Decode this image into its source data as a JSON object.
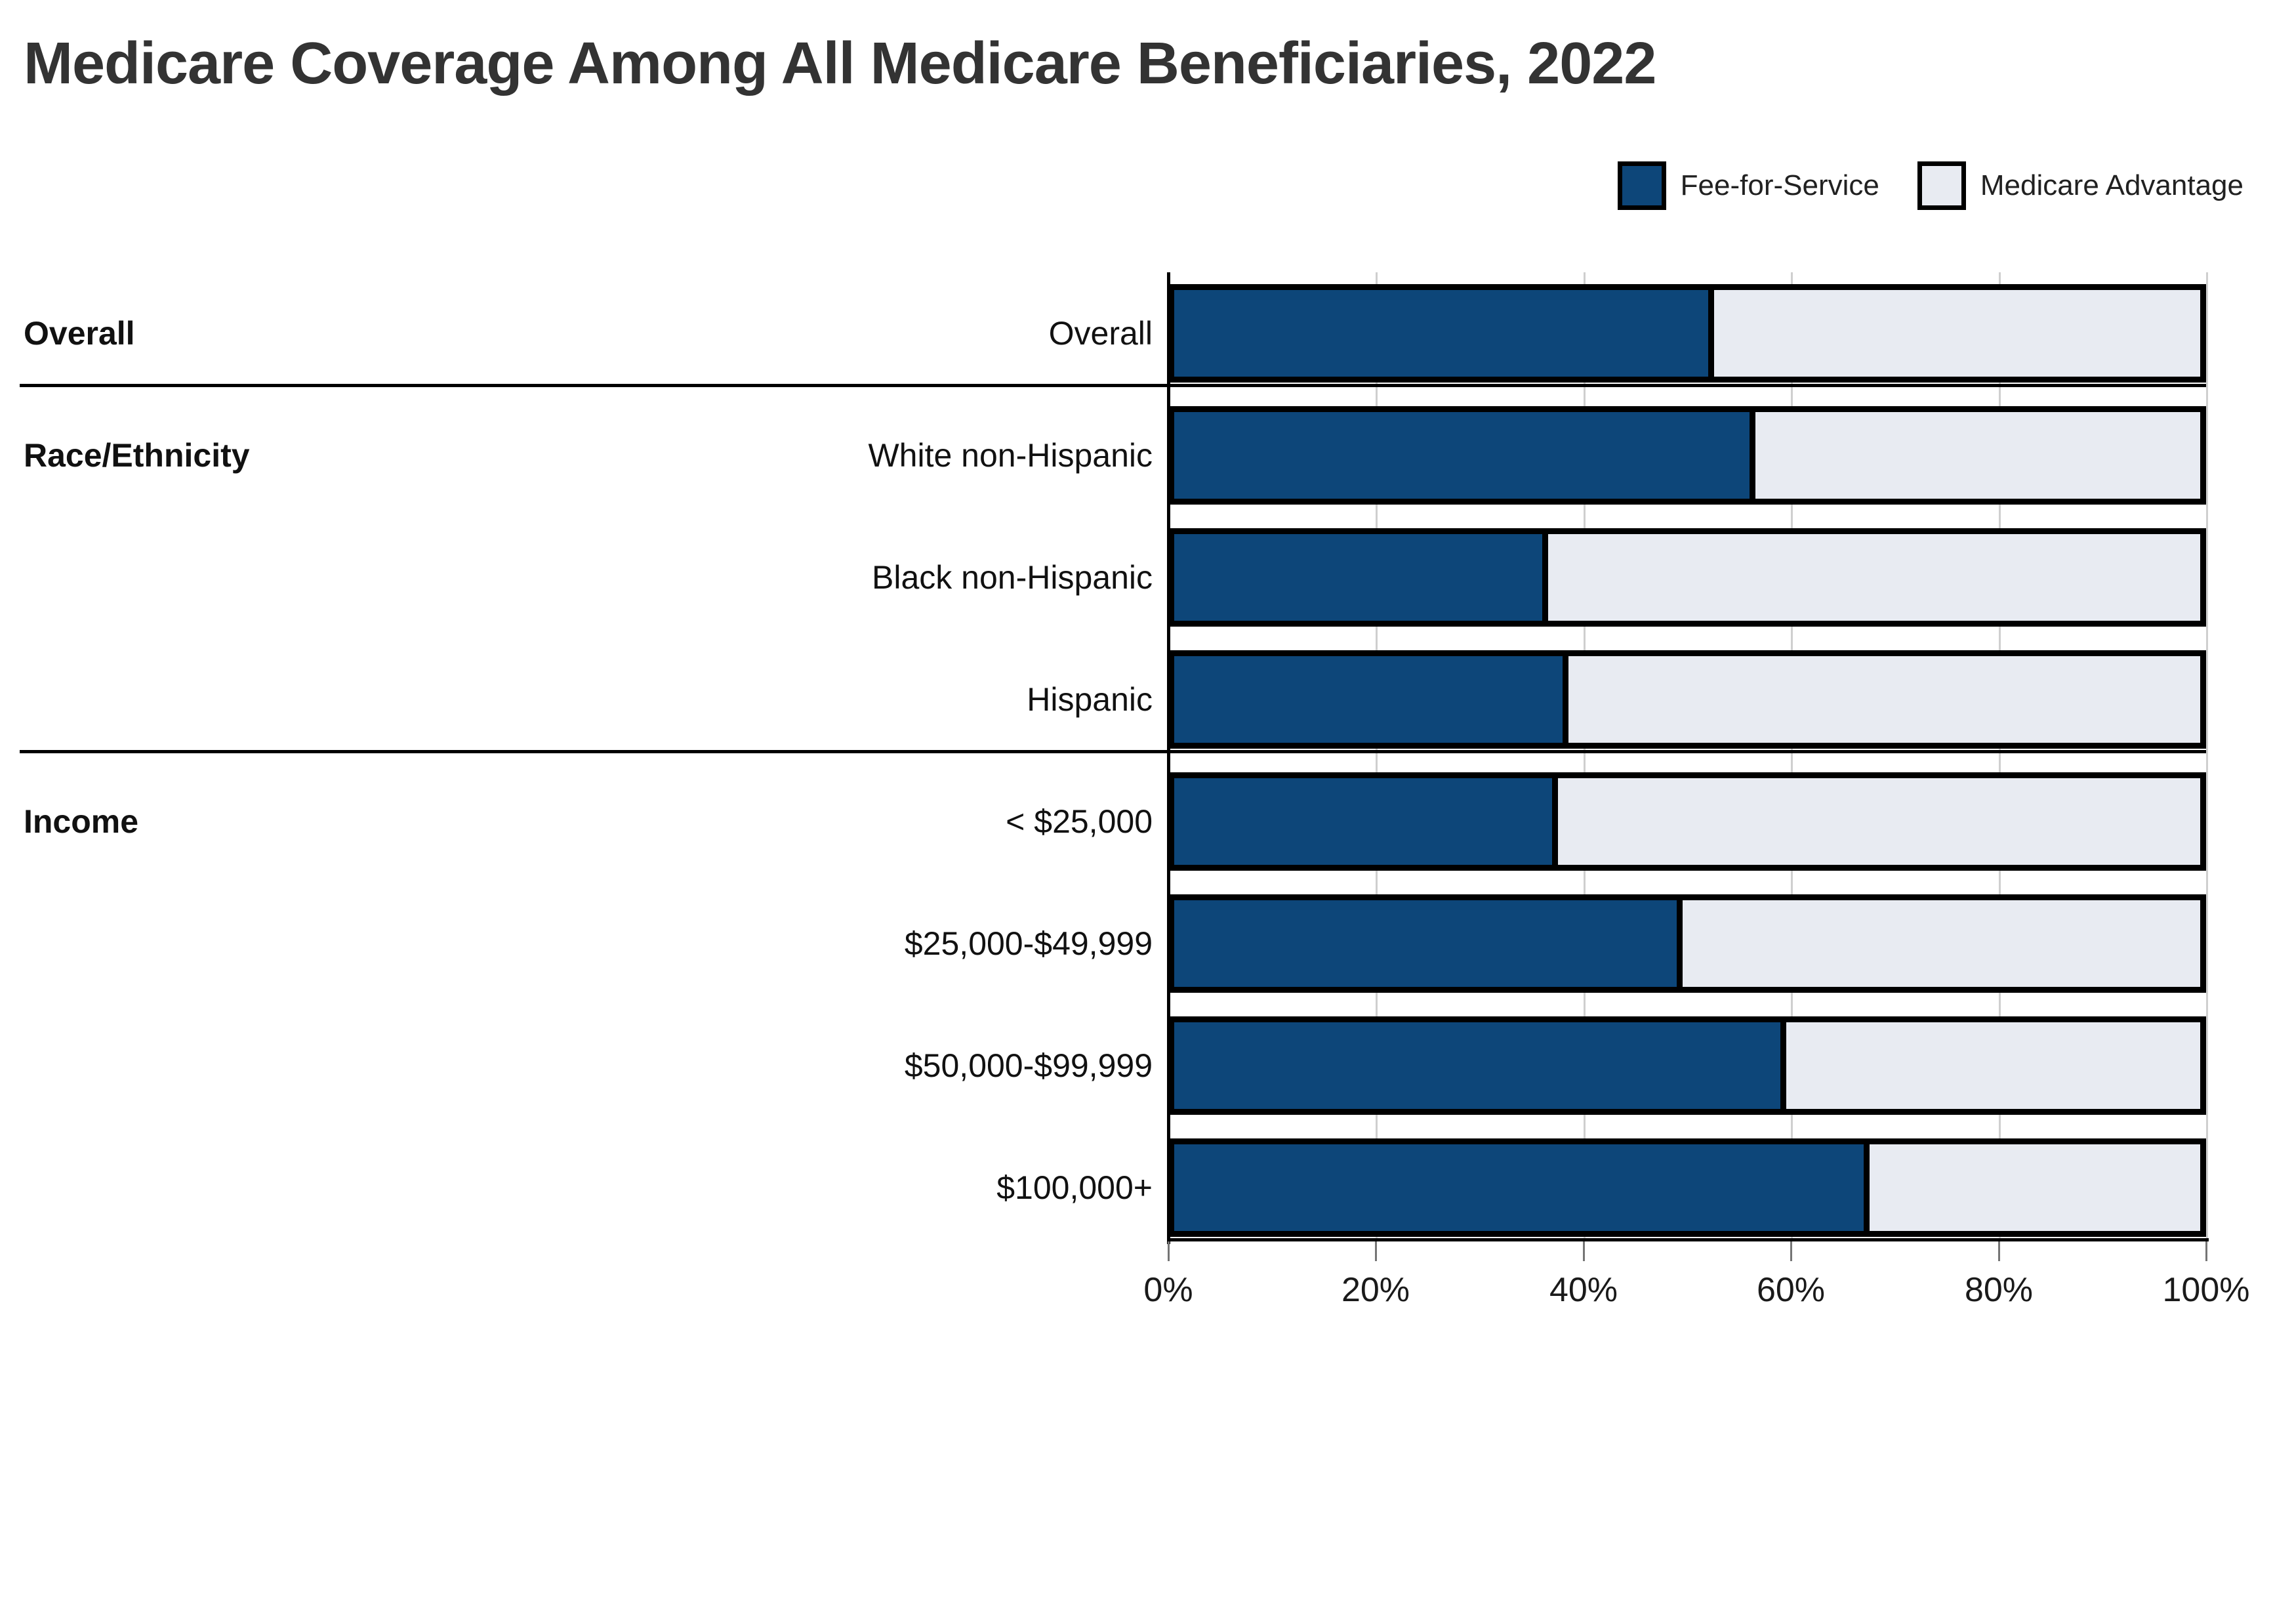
{
  "title": "Medicare Coverage Among All Medicare Beneficiaries, 2022",
  "legend": {
    "items": [
      {
        "label": "Fee-for-Service",
        "color": "#0D4679"
      },
      {
        "label": "Medicare Advantage",
        "color": "#E8EBF2"
      }
    ]
  },
  "colors": {
    "fee_for_service": "#0D4679",
    "medicare_advantage": "#E8EBF2",
    "bar_border": "#000000",
    "gridline": "#cfcfcf",
    "title_text": "#333333",
    "label_text": "#111111"
  },
  "chart_data": {
    "type": "bar",
    "orientation": "horizontal-stacked",
    "title": "Medicare Coverage Among All Medicare Beneficiaries, 2022",
    "xlabel": "",
    "ylabel": "",
    "unit": "percent",
    "xlim": [
      0,
      100
    ],
    "x_ticks": [
      "0%",
      "20%",
      "40%",
      "60%",
      "80%",
      "100%"
    ],
    "grid": true,
    "legend_position": "top-right",
    "groups": [
      {
        "label": "Overall",
        "categories": [
          "Overall"
        ]
      },
      {
        "label": "Race/Ethnicity",
        "categories": [
          "White non-Hispanic",
          "Black non-Hispanic",
          "Hispanic"
        ]
      },
      {
        "label": "Income",
        "categories": [
          "< $25,000",
          "$25,000-$49,999",
          "$50,000-$99,999",
          "$100,000+"
        ]
      }
    ],
    "categories": [
      "Overall",
      "White non-Hispanic",
      "Black non-Hispanic",
      "Hispanic",
      "< $25,000",
      "$25,000-$49,999",
      "$50,000-$99,999",
      "$100,000+"
    ],
    "series": [
      {
        "name": "Fee-for-Service",
        "color": "#0D4679",
        "values": [
          52,
          56,
          36,
          38,
          37,
          49,
          59,
          67
        ]
      },
      {
        "name": "Medicare Advantage",
        "color": "#E8EBF2",
        "values": [
          48,
          44,
          64,
          62,
          63,
          51,
          41,
          33
        ]
      }
    ]
  }
}
